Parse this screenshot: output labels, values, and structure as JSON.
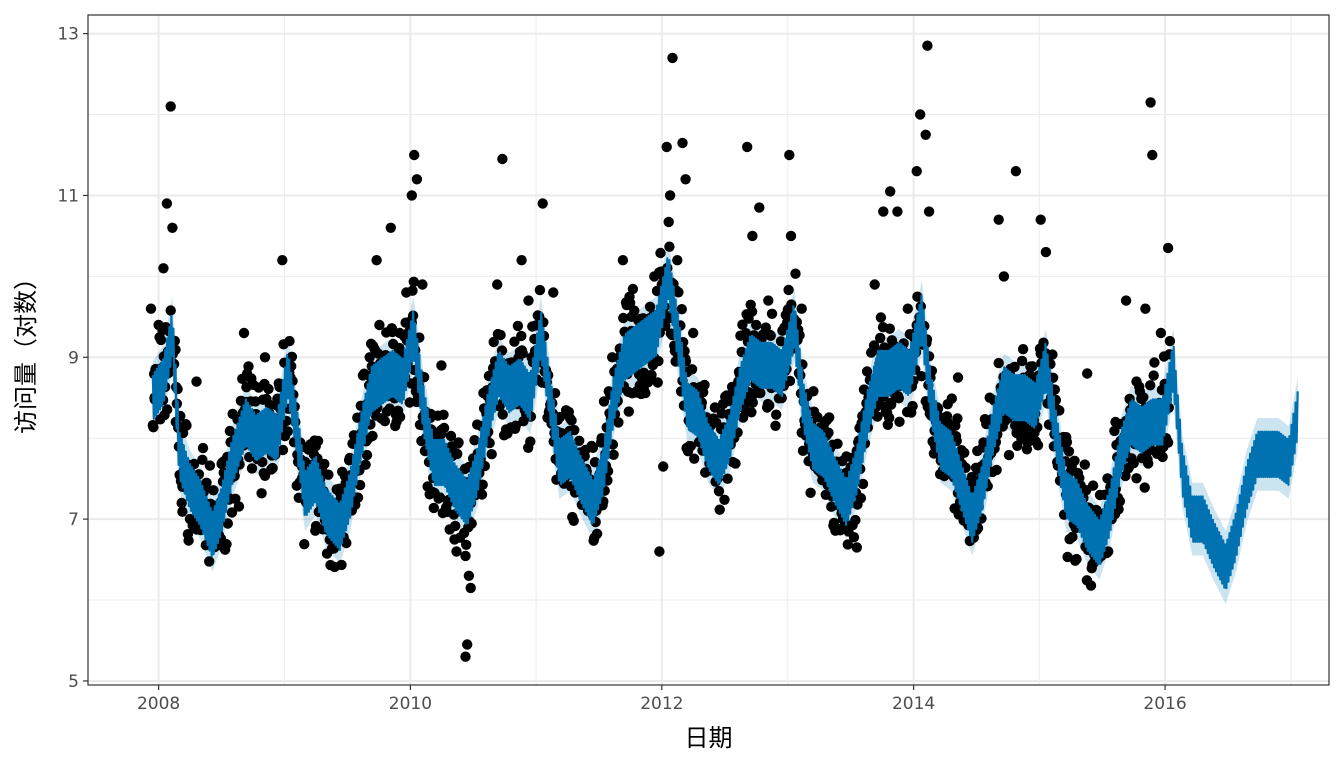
{
  "chart_data": {
    "type": "line",
    "title": "",
    "xlabel": "日期",
    "ylabel": "访问量（对数）",
    "xlim": [
      "2007-06-10",
      "2017-04-21"
    ],
    "ylim": [
      4.95,
      13.23
    ],
    "x_ticks": [
      "2008",
      "2010",
      "2012",
      "2014",
      "2016"
    ],
    "y_ticks": [
      "5",
      "7",
      "9",
      "11",
      "13"
    ],
    "grid": true,
    "legend": "none",
    "colors": {
      "observed": "#000000",
      "forecast": "#0072B2",
      "interval": "#0072B2",
      "grid": "#ebebeb",
      "panel_border": "#333333"
    },
    "series": [
      {
        "kind": "observed-points",
        "points": [
          [
            "2007-12-10",
            9.6
          ],
          [
            "2007-12-20",
            8.5
          ],
          [
            "2008-01-01",
            9.4
          ],
          [
            "2008-01-15",
            10.1
          ],
          [
            "2008-01-25",
            10.9
          ],
          [
            "2008-02-05",
            12.1
          ],
          [
            "2008-02-10",
            10.6
          ],
          [
            "2008-02-20",
            8.2
          ],
          [
            "2008-03-10",
            7.4
          ],
          [
            "2008-04-01",
            7.0
          ],
          [
            "2008-04-20",
            8.7
          ],
          [
            "2008-05-15",
            7.2
          ],
          [
            "2008-06-10",
            7.0
          ],
          [
            "2008-07-10",
            7.3
          ],
          [
            "2008-08-10",
            8.0
          ],
          [
            "2008-09-05",
            9.3
          ],
          [
            "2008-10-05",
            8.2
          ],
          [
            "2008-11-05",
            9.0
          ],
          [
            "2008-12-05",
            7.8
          ],
          [
            "2008-12-25",
            10.2
          ],
          [
            "2009-01-15",
            9.2
          ],
          [
            "2009-02-20",
            7.5
          ],
          [
            "2009-04-01",
            7.9
          ],
          [
            "2009-05-10",
            7.2
          ],
          [
            "2009-06-10",
            6.9
          ],
          [
            "2009-07-10",
            7.4
          ],
          [
            "2009-08-10",
            8.4
          ],
          [
            "2009-09-05",
            9.0
          ],
          [
            "2009-09-25",
            10.2
          ],
          [
            "2009-10-15",
            8.8
          ],
          [
            "2009-11-05",
            10.6
          ],
          [
            "2009-12-01",
            9.3
          ],
          [
            "2009-12-20",
            9.8
          ],
          [
            "2010-01-05",
            11.0
          ],
          [
            "2010-01-12",
            11.5
          ],
          [
            "2010-01-20",
            11.2
          ],
          [
            "2010-02-05",
            9.9
          ],
          [
            "2010-03-01",
            8.3
          ],
          [
            "2010-04-01",
            8.9
          ],
          [
            "2010-05-01",
            7.9
          ],
          [
            "2010-06-10",
            5.3
          ],
          [
            "2010-06-15",
            5.45
          ],
          [
            "2010-06-20",
            6.3
          ],
          [
            "2010-06-25",
            6.15
          ],
          [
            "2010-07-10",
            7.5
          ],
          [
            "2010-08-10",
            8.3
          ],
          [
            "2010-09-10",
            9.9
          ],
          [
            "2010-09-25",
            11.45
          ],
          [
            "2010-10-15",
            8.7
          ],
          [
            "2010-11-20",
            10.2
          ],
          [
            "2010-12-10",
            9.7
          ],
          [
            "2011-01-20",
            10.9
          ],
          [
            "2011-02-20",
            9.8
          ],
          [
            "2011-03-10",
            7.8
          ],
          [
            "2011-04-01",
            8.3
          ],
          [
            "2011-05-10",
            7.4
          ],
          [
            "2011-06-01",
            7.1
          ],
          [
            "2011-07-10",
            8.0
          ],
          [
            "2011-08-10",
            9.0
          ],
          [
            "2011-09-10",
            10.2
          ],
          [
            "2011-10-05",
            9.5
          ],
          [
            "2011-11-10",
            8.6
          ],
          [
            "2011-12-10",
            10.0
          ],
          [
            "2011-12-25",
            6.6
          ],
          [
            "2012-01-05",
            7.65
          ],
          [
            "2012-01-15",
            11.6
          ],
          [
            "2012-01-25",
            11.0
          ],
          [
            "2012-02-01",
            12.7
          ],
          [
            "2012-02-15",
            10.2
          ],
          [
            "2012-03-01",
            11.65
          ],
          [
            "2012-03-10",
            11.2
          ],
          [
            "2012-04-01",
            9.3
          ],
          [
            "2012-05-01",
            8.1
          ],
          [
            "2012-06-01",
            7.6
          ],
          [
            "2012-07-10",
            7.5
          ],
          [
            "2012-08-10",
            8.7
          ],
          [
            "2012-09-05",
            11.6
          ],
          [
            "2012-09-20",
            10.5
          ],
          [
            "2012-10-10",
            10.85
          ],
          [
            "2012-11-05",
            9.7
          ],
          [
            "2012-12-05",
            9.0
          ],
          [
            "2013-01-05",
            11.5
          ],
          [
            "2013-01-10",
            10.5
          ],
          [
            "2013-02-10",
            9.6
          ],
          [
            "2013-03-10",
            8.2
          ],
          [
            "2013-04-10",
            7.8
          ],
          [
            "2013-05-10",
            7.6
          ],
          [
            "2013-06-10",
            7.0
          ],
          [
            "2013-07-20",
            6.65
          ],
          [
            "2013-08-10",
            8.6
          ],
          [
            "2013-09-10",
            9.9
          ],
          [
            "2013-10-05",
            10.8
          ],
          [
            "2013-10-25",
            11.05
          ],
          [
            "2013-11-15",
            10.8
          ],
          [
            "2013-12-15",
            9.6
          ],
          [
            "2014-01-10",
            11.3
          ],
          [
            "2014-01-20",
            12.0
          ],
          [
            "2014-02-05",
            11.75
          ],
          [
            "2014-02-10",
            12.85
          ],
          [
            "2014-02-15",
            10.8
          ],
          [
            "2014-03-10",
            8.3
          ],
          [
            "2014-04-10",
            8.2
          ],
          [
            "2014-05-10",
            8.75
          ],
          [
            "2014-06-10",
            7.3
          ],
          [
            "2014-07-10",
            7.6
          ],
          [
            "2014-08-10",
            8.5
          ],
          [
            "2014-09-05",
            10.7
          ],
          [
            "2014-09-20",
            10.0
          ],
          [
            "2014-10-25",
            11.3
          ],
          [
            "2014-11-15",
            9.1
          ],
          [
            "2014-12-20",
            8.5
          ],
          [
            "2015-01-05",
            10.7
          ],
          [
            "2015-01-20",
            10.3
          ],
          [
            "2015-02-15",
            8.6
          ],
          [
            "2015-03-20",
            7.3
          ],
          [
            "2015-04-20",
            7.0
          ],
          [
            "2015-05-20",
            8.8
          ],
          [
            "2015-06-20",
            6.5
          ],
          [
            "2015-07-10",
            7.3
          ],
          [
            "2015-08-10",
            8.2
          ],
          [
            "2015-09-10",
            9.7
          ],
          [
            "2015-10-10",
            8.7
          ],
          [
            "2015-11-05",
            9.6
          ],
          [
            "2015-11-20",
            12.15
          ],
          [
            "2015-11-25",
            11.5
          ],
          [
            "2015-12-20",
            9.3
          ],
          [
            "2016-01-10",
            10.35
          ],
          [
            "2016-01-15",
            9.2
          ]
        ]
      },
      {
        "kind": "forecast-line",
        "points": [
          [
            "2007-12-15",
            8.5
          ],
          [
            "2008-01-15",
            8.7
          ],
          [
            "2008-02-10",
            9.3
          ],
          [
            "2008-03-01",
            7.8
          ],
          [
            "2008-04-01",
            7.4
          ],
          [
            "2008-05-01",
            7.2
          ],
          [
            "2008-06-05",
            6.8
          ],
          [
            "2008-07-01",
            7.1
          ],
          [
            "2008-08-01",
            7.7
          ],
          [
            "2008-09-10",
            8.2
          ],
          [
            "2008-10-10",
            8.0
          ],
          [
            "2008-11-10",
            8.1
          ],
          [
            "2008-12-10",
            8.0
          ],
          [
            "2009-01-10",
            8.8
          ],
          [
            "2009-02-05",
            8.1
          ],
          [
            "2009-03-01",
            7.3
          ],
          [
            "2009-04-01",
            7.5
          ],
          [
            "2009-05-01",
            7.1
          ],
          [
            "2009-06-10",
            6.9
          ],
          [
            "2009-07-10",
            7.3
          ],
          [
            "2009-08-10",
            8.0
          ],
          [
            "2009-09-10",
            8.6
          ],
          [
            "2009-10-10",
            8.7
          ],
          [
            "2009-11-10",
            8.8
          ],
          [
            "2009-12-10",
            8.7
          ],
          [
            "2010-01-10",
            9.3
          ],
          [
            "2010-02-10",
            8.3
          ],
          [
            "2010-03-10",
            7.7
          ],
          [
            "2010-04-10",
            7.7
          ],
          [
            "2010-05-10",
            7.4
          ],
          [
            "2010-06-15",
            7.2
          ],
          [
            "2010-07-15",
            7.6
          ],
          [
            "2010-08-15",
            8.3
          ],
          [
            "2010-09-15",
            8.8
          ],
          [
            "2010-10-15",
            8.6
          ],
          [
            "2010-11-15",
            8.7
          ],
          [
            "2010-12-15",
            8.5
          ],
          [
            "2011-01-15",
            9.3
          ],
          [
            "2011-02-10",
            8.5
          ],
          [
            "2011-03-10",
            7.7
          ],
          [
            "2011-04-10",
            7.8
          ],
          [
            "2011-05-10",
            7.5
          ],
          [
            "2011-06-15",
            7.2
          ],
          [
            "2011-07-15",
            7.6
          ],
          [
            "2011-08-15",
            8.5
          ],
          [
            "2011-09-15",
            9.0
          ],
          [
            "2011-10-15",
            9.1
          ],
          [
            "2011-11-15",
            9.2
          ],
          [
            "2011-12-15",
            9.3
          ],
          [
            "2012-01-20",
            10.0
          ],
          [
            "2012-02-15",
            9.3
          ],
          [
            "2012-03-15",
            8.4
          ],
          [
            "2012-04-15",
            8.3
          ],
          [
            "2012-05-15",
            7.9
          ],
          [
            "2012-06-15",
            7.7
          ],
          [
            "2012-07-15",
            8.0
          ],
          [
            "2012-08-15",
            8.6
          ],
          [
            "2012-09-15",
            9.0
          ],
          [
            "2012-10-15",
            8.9
          ],
          [
            "2012-11-15",
            8.9
          ],
          [
            "2012-12-15",
            8.8
          ],
          [
            "2013-01-20",
            9.4
          ],
          [
            "2013-02-15",
            8.4
          ],
          [
            "2013-03-15",
            7.9
          ],
          [
            "2013-04-15",
            7.8
          ],
          [
            "2013-05-15",
            7.5
          ],
          [
            "2013-06-20",
            7.2
          ],
          [
            "2013-07-20",
            7.6
          ],
          [
            "2013-08-20",
            8.3
          ],
          [
            "2013-09-20",
            8.8
          ],
          [
            "2013-10-20",
            8.8
          ],
          [
            "2013-11-20",
            8.9
          ],
          [
            "2013-12-20",
            8.8
          ],
          [
            "2014-01-25",
            9.5
          ],
          [
            "2014-02-20",
            8.5
          ],
          [
            "2014-03-20",
            7.9
          ],
          [
            "2014-04-20",
            7.8
          ],
          [
            "2014-05-20",
            7.4
          ],
          [
            "2014-06-20",
            7.0
          ],
          [
            "2014-07-20",
            7.4
          ],
          [
            "2014-08-20",
            8.1
          ],
          [
            "2014-09-20",
            8.6
          ],
          [
            "2014-10-20",
            8.5
          ],
          [
            "2014-11-20",
            8.5
          ],
          [
            "2014-12-20",
            8.4
          ],
          [
            "2015-01-20",
            8.9
          ],
          [
            "2015-02-20",
            8.0
          ],
          [
            "2015-03-20",
            7.3
          ],
          [
            "2015-04-20",
            7.2
          ],
          [
            "2015-05-20",
            6.9
          ],
          [
            "2015-06-25",
            6.7
          ],
          [
            "2015-07-25",
            7.1
          ],
          [
            "2015-08-25",
            7.8
          ],
          [
            "2015-09-25",
            8.2
          ],
          [
            "2015-10-25",
            8.1
          ],
          [
            "2015-11-25",
            8.2
          ],
          [
            "2015-12-25",
            8.2
          ],
          [
            "2016-01-25",
            8.9
          ],
          [
            "2016-02-20",
            7.6
          ],
          [
            "2016-03-20",
            7.0
          ],
          [
            "2016-04-20",
            7.0
          ],
          [
            "2016-05-20",
            6.7
          ],
          [
            "2016-06-25",
            6.4
          ],
          [
            "2016-07-25",
            6.8
          ],
          [
            "2016-08-25",
            7.4
          ],
          [
            "2016-09-25",
            7.8
          ],
          [
            "2016-10-25",
            7.8
          ],
          [
            "2016-11-25",
            7.8
          ],
          [
            "2016-12-25",
            7.7
          ],
          [
            "2017-01-20",
            8.3
          ]
        ]
      }
    ]
  }
}
